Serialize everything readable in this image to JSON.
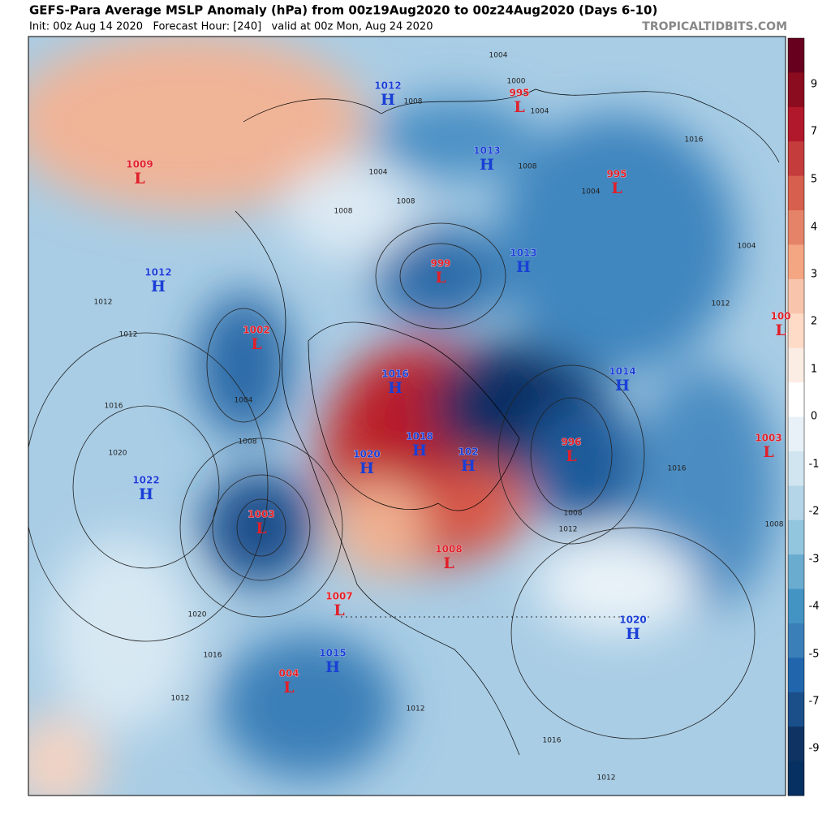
{
  "header": {
    "title": "GEFS-Para Average MSLP Anomaly (hPa) from 00z19Aug2020 to 00z24Aug2020 (Days 6-10)",
    "subtitle": "Init: 00z Aug 14 2020   Forecast Hour: [240]   valid at 00z Mon, Aug 24 2020",
    "credit": "TROPICALTIDBITS.COM"
  },
  "colorbar": {
    "ticks": [
      "9",
      "7",
      "5",
      "4",
      "3",
      "2",
      "1",
      "0",
      "-1",
      "-2",
      "-3",
      "-4",
      "-5",
      "-7",
      "-9"
    ]
  },
  "centers": [
    {
      "value": "1009",
      "letter": "L"
    },
    {
      "value": "1012",
      "letter": "H"
    },
    {
      "value": "995",
      "letter": "L"
    },
    {
      "value": "1013",
      "letter": "H"
    },
    {
      "value": "995",
      "letter": "L"
    },
    {
      "value": "1012",
      "letter": "H"
    },
    {
      "value": "999",
      "letter": "L"
    },
    {
      "value": "1013",
      "letter": "H"
    },
    {
      "value": "1002",
      "letter": "L"
    },
    {
      "value": "1016",
      "letter": "H"
    },
    {
      "value": "1014",
      "letter": "H"
    },
    {
      "value": "100",
      "letter": "L"
    },
    {
      "value": "1020",
      "letter": "H"
    },
    {
      "value": "1018",
      "letter": "H"
    },
    {
      "value": "102",
      "letter": "H"
    },
    {
      "value": "996",
      "letter": "L"
    },
    {
      "value": "1003",
      "letter": "L"
    },
    {
      "value": "1022",
      "letter": "H"
    },
    {
      "value": "1003",
      "letter": "L"
    },
    {
      "value": "1008",
      "letter": "L"
    },
    {
      "value": "1007",
      "letter": "L"
    },
    {
      "value": "1020",
      "letter": "H"
    },
    {
      "value": "1015",
      "letter": "H"
    },
    {
      "value": "004",
      "letter": "L"
    }
  ],
  "isobar_labels": [
    "1004",
    "1000",
    "1008",
    "1004",
    "1008",
    "1004",
    "1008",
    "1004",
    "1012",
    "1012",
    "1016",
    "1004",
    "1008",
    "1020",
    "1020",
    "1016",
    "1012",
    "1016",
    "1012",
    "1012",
    "1008",
    "1016",
    "1008",
    "1012",
    "1016",
    "1012",
    "1008",
    "1004"
  ]
}
